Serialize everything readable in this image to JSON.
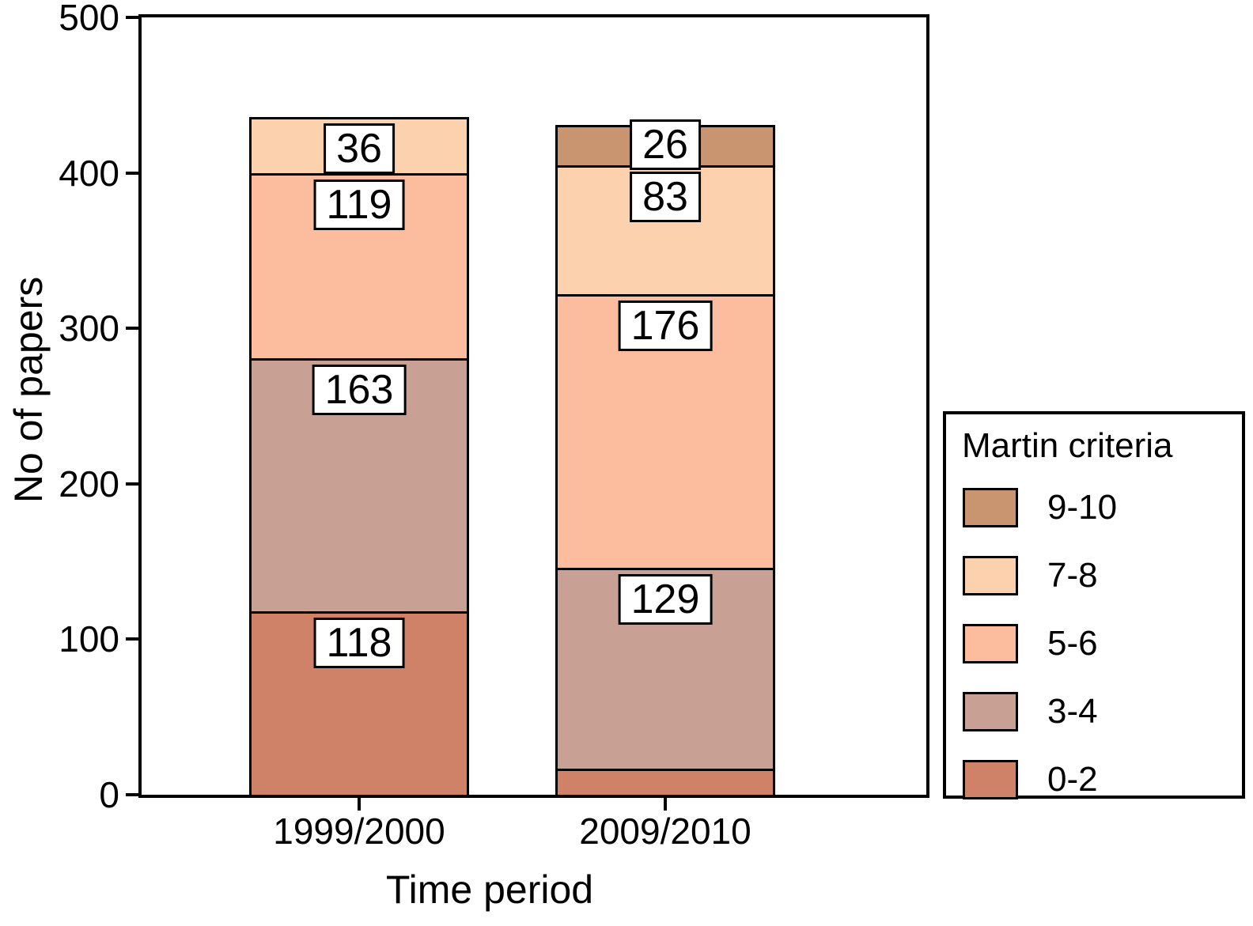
{
  "chart_data": {
    "type": "bar",
    "stacked": true,
    "xlabel": "Time period",
    "ylabel": "No of papers",
    "ylim": [
      0,
      500
    ],
    "yticks": [
      0,
      100,
      200,
      300,
      400,
      500
    ],
    "categories": [
      "1999/2000",
      "2009/2010"
    ],
    "series": [
      {
        "name": "0-2",
        "color": "#d08268",
        "values": [
          118,
          17
        ],
        "labels": [
          "118",
          ""
        ]
      },
      {
        "name": "3-4",
        "color": "#c8a094",
        "values": [
          163,
          129
        ],
        "labels": [
          "163",
          "129"
        ]
      },
      {
        "name": "5-6",
        "color": "#fbbd9d",
        "values": [
          119,
          176
        ],
        "labels": [
          "119",
          "176"
        ]
      },
      {
        "name": "7-8",
        "color": "#fcd2ae",
        "values": [
          36,
          83
        ],
        "labels": [
          "36",
          "83"
        ]
      },
      {
        "name": "9-10",
        "color": "#c99470",
        "values": [
          0,
          26
        ],
        "labels": [
          "",
          "26"
        ]
      }
    ],
    "legend": {
      "title": "Martin criteria",
      "position": "right",
      "items": [
        {
          "label": "9-10",
          "color": "#c99470"
        },
        {
          "label": "7-8",
          "color": "#fcd2ae"
        },
        {
          "label": "5-6",
          "color": "#fbbd9d"
        },
        {
          "label": "3-4",
          "color": "#c8a094"
        },
        {
          "label": "0-2",
          "color": "#d08268"
        }
      ]
    },
    "grid": false
  }
}
